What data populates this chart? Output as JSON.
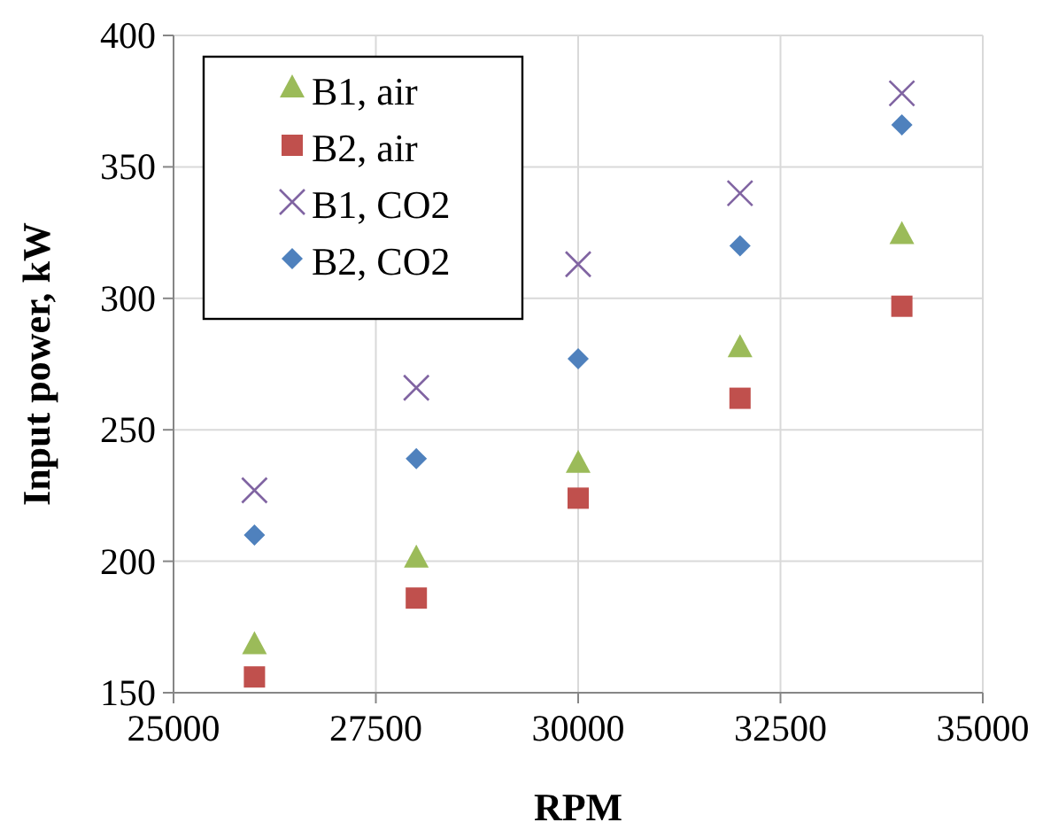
{
  "chart_data": {
    "type": "scatter",
    "xlabel": "RPM",
    "ylabel": "Input power, kW",
    "x": [
      26000,
      28000,
      30000,
      32000,
      34000
    ],
    "xlim": [
      25000,
      35000
    ],
    "xticks": [
      25000,
      27500,
      30000,
      32500,
      35000
    ],
    "ylim": [
      150,
      400
    ],
    "yticks": [
      150,
      200,
      250,
      300,
      350,
      400
    ],
    "grid": true,
    "legend": "top left",
    "series": [
      {
        "name": "B1, air",
        "color": "#9bbb59",
        "marker": "triangle",
        "values": [
          168,
          201,
          237,
          281,
          324
        ]
      },
      {
        "name": "B2, air",
        "color": "#c0504d",
        "marker": "square",
        "values": [
          156,
          186,
          224,
          262,
          297
        ]
      },
      {
        "name": "B1, CO2",
        "color": "#8064a2",
        "marker": "cross",
        "values": [
          227,
          266,
          313,
          340,
          378
        ]
      },
      {
        "name": "B2, CO2",
        "color": "#4f81bd",
        "marker": "diamond",
        "values": [
          210,
          239,
          277,
          320,
          366
        ]
      }
    ]
  }
}
